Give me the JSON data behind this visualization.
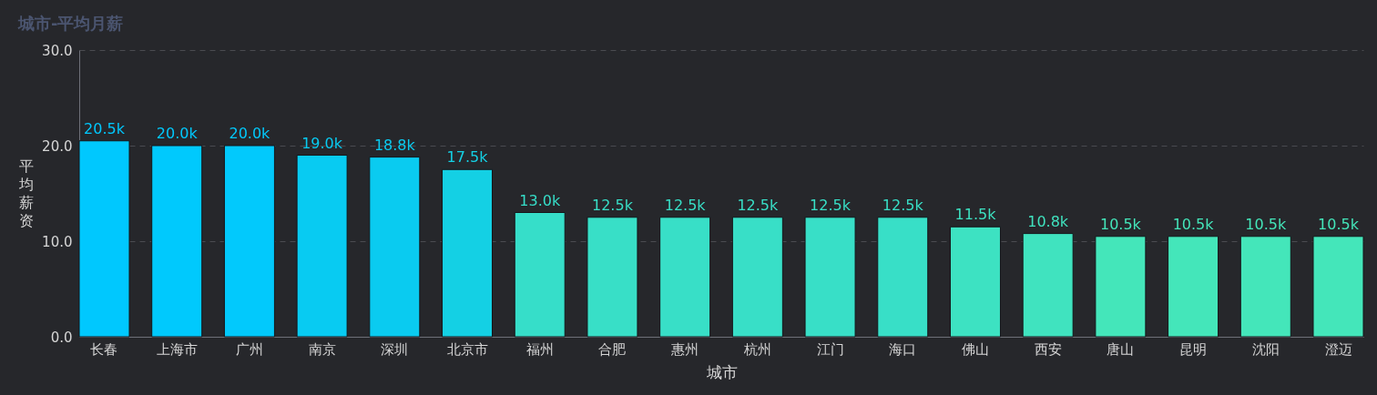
{
  "chart_data": {
    "type": "bar",
    "title": "城市-平均月薪",
    "xlabel": "城市",
    "ylabel": "平均薪资",
    "categories": [
      "长春",
      "上海市",
      "广州",
      "南京",
      "深圳",
      "北京市",
      "福州",
      "合肥",
      "惠州",
      "杭州",
      "江门",
      "海口",
      "佛山",
      "西安",
      "唐山",
      "昆明",
      "沈阳",
      "澄迈"
    ],
    "values": [
      20.5,
      20.0,
      20.0,
      19.0,
      18.8,
      17.5,
      13.0,
      12.5,
      12.5,
      12.5,
      12.5,
      12.5,
      11.5,
      10.8,
      10.5,
      10.5,
      10.5,
      10.5
    ],
    "value_labels": [
      "20.5k",
      "20.0k",
      "20.0k",
      "19.0k",
      "18.8k",
      "17.5k",
      "13.0k",
      "12.5k",
      "12.5k",
      "12.5k",
      "12.5k",
      "12.5k",
      "11.5k",
      "10.8k",
      "10.5k",
      "10.5k",
      "10.5k",
      "10.5k"
    ],
    "colors": [
      "#00c8fe",
      "#00c9fd",
      "#02c9fc",
      "#08cbf2",
      "#0acbf0",
      "#14d0e4",
      "#36dec9",
      "#38dfc7",
      "#38dfc7",
      "#38dfc7",
      "#38dfc7",
      "#38dfc7",
      "#3de2c2",
      "#40e3bf",
      "#44e6ba",
      "#44e6ba",
      "#44e6ba",
      "#44e6ba"
    ],
    "ylim": [
      0,
      30
    ],
    "yticks": [
      {
        "value": 0,
        "label": "0.0"
      },
      {
        "value": 10,
        "label": "10.0"
      },
      {
        "value": 20,
        "label": "20.0"
      },
      {
        "value": 30,
        "label": "30.0"
      }
    ],
    "grid": "y"
  }
}
